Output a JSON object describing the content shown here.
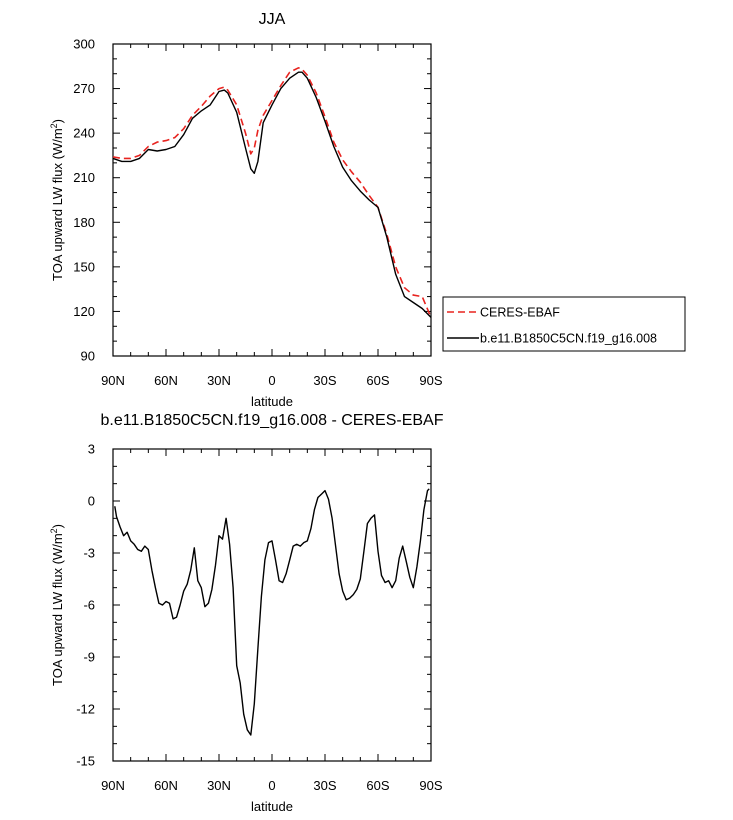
{
  "chart_data": [
    {
      "type": "line",
      "title": "JJA",
      "xlabel": "latitude",
      "ylabel_main": "TOA upward LW flux (W/m",
      "ylabel_sup": "2",
      "ylabel_close": ")",
      "xlim": [
        90,
        -90
      ],
      "ylim": [
        90,
        300
      ],
      "xticks": [
        {
          "value": 90,
          "label": "90N"
        },
        {
          "value": 60,
          "label": "60N"
        },
        {
          "value": 30,
          "label": "30N"
        },
        {
          "value": 0,
          "label": "0"
        },
        {
          "value": -30,
          "label": "30S"
        },
        {
          "value": -60,
          "label": "60S"
        },
        {
          "value": -90,
          "label": "90S"
        }
      ],
      "yticks": [
        90,
        120,
        150,
        180,
        210,
        240,
        270,
        300
      ],
      "legend_position": "right",
      "series": [
        {
          "name": "CERES-EBAF",
          "color": "#e8231f",
          "dash": "dashed",
          "x": [
            90,
            85,
            80,
            75,
            70,
            65,
            60,
            55,
            50,
            45,
            40,
            35,
            30,
            27,
            25,
            20,
            15,
            12,
            10,
            8,
            5,
            0,
            -5,
            -10,
            -15,
            -17,
            -20,
            -25,
            -30,
            -35,
            -40,
            -45,
            -50,
            -55,
            -60,
            -65,
            -70,
            -75,
            -80,
            -85,
            -90
          ],
          "y": [
            224,
            223,
            223,
            225,
            231,
            234,
            235,
            237,
            243,
            252,
            258,
            265,
            270,
            271,
            269,
            259,
            240,
            226,
            230,
            242,
            252,
            262,
            272,
            281,
            284,
            283,
            279,
            267,
            251,
            234,
            222,
            214,
            207,
            198,
            190,
            172,
            150,
            136,
            131,
            130,
            116
          ]
        },
        {
          "name": "b.e11.B1850C5CN.f19_g16.008",
          "color": "#000000",
          "dash": "solid",
          "x": [
            90,
            85,
            80,
            75,
            70,
            65,
            60,
            55,
            50,
            45,
            40,
            35,
            30,
            27,
            25,
            20,
            15,
            12,
            10,
            8,
            5,
            0,
            -5,
            -10,
            -15,
            -17,
            -20,
            -25,
            -30,
            -35,
            -40,
            -45,
            -50,
            -55,
            -60,
            -65,
            -70,
            -75,
            -80,
            -85,
            -90
          ],
          "y": [
            223,
            221,
            221,
            223,
            229,
            228,
            229,
            231,
            239,
            250,
            255,
            259,
            268,
            269,
            267,
            254,
            230,
            216,
            213,
            221,
            247,
            259,
            270,
            277,
            281,
            281,
            277,
            264,
            248,
            231,
            217,
            208,
            201,
            195,
            190,
            170,
            145,
            130,
            126,
            122,
            116
          ]
        }
      ]
    },
    {
      "type": "line",
      "title": "b.e11.B1850C5CN.f19_g16.008 - CERES-EBAF",
      "xlabel": "latitude",
      "ylabel_main": "TOA upward LW flux (W/m",
      "ylabel_sup": "2",
      "ylabel_close": ")",
      "xlim": [
        90,
        -90
      ],
      "ylim": [
        -15,
        3
      ],
      "xticks": [
        {
          "value": 90,
          "label": "90N"
        },
        {
          "value": 60,
          "label": "60N"
        },
        {
          "value": 30,
          "label": "30N"
        },
        {
          "value": 0,
          "label": "0"
        },
        {
          "value": -30,
          "label": "30S"
        },
        {
          "value": -60,
          "label": "60S"
        },
        {
          "value": -90,
          "label": "90S"
        }
      ],
      "yticks": [
        -15,
        -12,
        -9,
        -6,
        -3,
        0,
        3
      ],
      "series": [
        {
          "color": "#000000",
          "dash": "solid",
          "x": [
            89,
            88,
            86,
            84,
            82,
            80,
            78,
            76,
            74,
            72,
            70,
            68,
            66,
            64,
            62,
            60,
            58,
            56,
            54,
            52,
            50,
            48,
            46,
            44,
            42,
            40,
            38,
            36,
            34,
            32,
            30,
            28,
            26,
            24,
            22,
            20,
            18,
            16,
            14,
            12,
            10,
            8,
            6,
            4,
            2,
            0,
            -2,
            -4,
            -6,
            -8,
            -10,
            -12,
            -14,
            -16,
            -18,
            -20,
            -22,
            -24,
            -26,
            -28,
            -30,
            -32,
            -34,
            -36,
            -38,
            -40,
            -42,
            -44,
            -46,
            -48,
            -50,
            -52,
            -54,
            -56,
            -58,
            -60,
            -62,
            -64,
            -66,
            -68,
            -70,
            -72,
            -74,
            -76,
            -78,
            -80,
            -82,
            -84,
            -86,
            -88,
            -89
          ],
          "y": [
            -0.3,
            -0.9,
            -1.5,
            -2.0,
            -1.8,
            -2.3,
            -2.5,
            -2.8,
            -2.9,
            -2.6,
            -2.8,
            -4.0,
            -5.0,
            -5.9,
            -6.0,
            -5.8,
            -5.9,
            -6.8,
            -6.7,
            -6.0,
            -5.2,
            -4.8,
            -4.0,
            -2.7,
            -4.6,
            -5.0,
            -6.1,
            -5.9,
            -5.1,
            -3.7,
            -2.0,
            -2.2,
            -1.0,
            -2.5,
            -5.0,
            -9.5,
            -10.5,
            -12.3,
            -13.2,
            -13.5,
            -11.7,
            -8.5,
            -5.5,
            -3.4,
            -2.4,
            -2.3,
            -3.4,
            -4.6,
            -4.7,
            -4.2,
            -3.4,
            -2.6,
            -2.5,
            -2.6,
            -2.4,
            -2.3,
            -1.6,
            -0.5,
            0.2,
            0.4,
            0.6,
            0.1,
            -1.0,
            -2.6,
            -4.2,
            -5.2,
            -5.7,
            -5.6,
            -5.4,
            -5.1,
            -4.5,
            -2.9,
            -1.3,
            -1.0,
            -0.8,
            -2.9,
            -4.3,
            -4.7,
            -4.6,
            -5.0,
            -4.6,
            -3.3,
            -2.6,
            -3.5,
            -4.4,
            -5.0,
            -3.8,
            -2.3,
            -0.5,
            0.6,
            0.7
          ]
        }
      ]
    }
  ]
}
